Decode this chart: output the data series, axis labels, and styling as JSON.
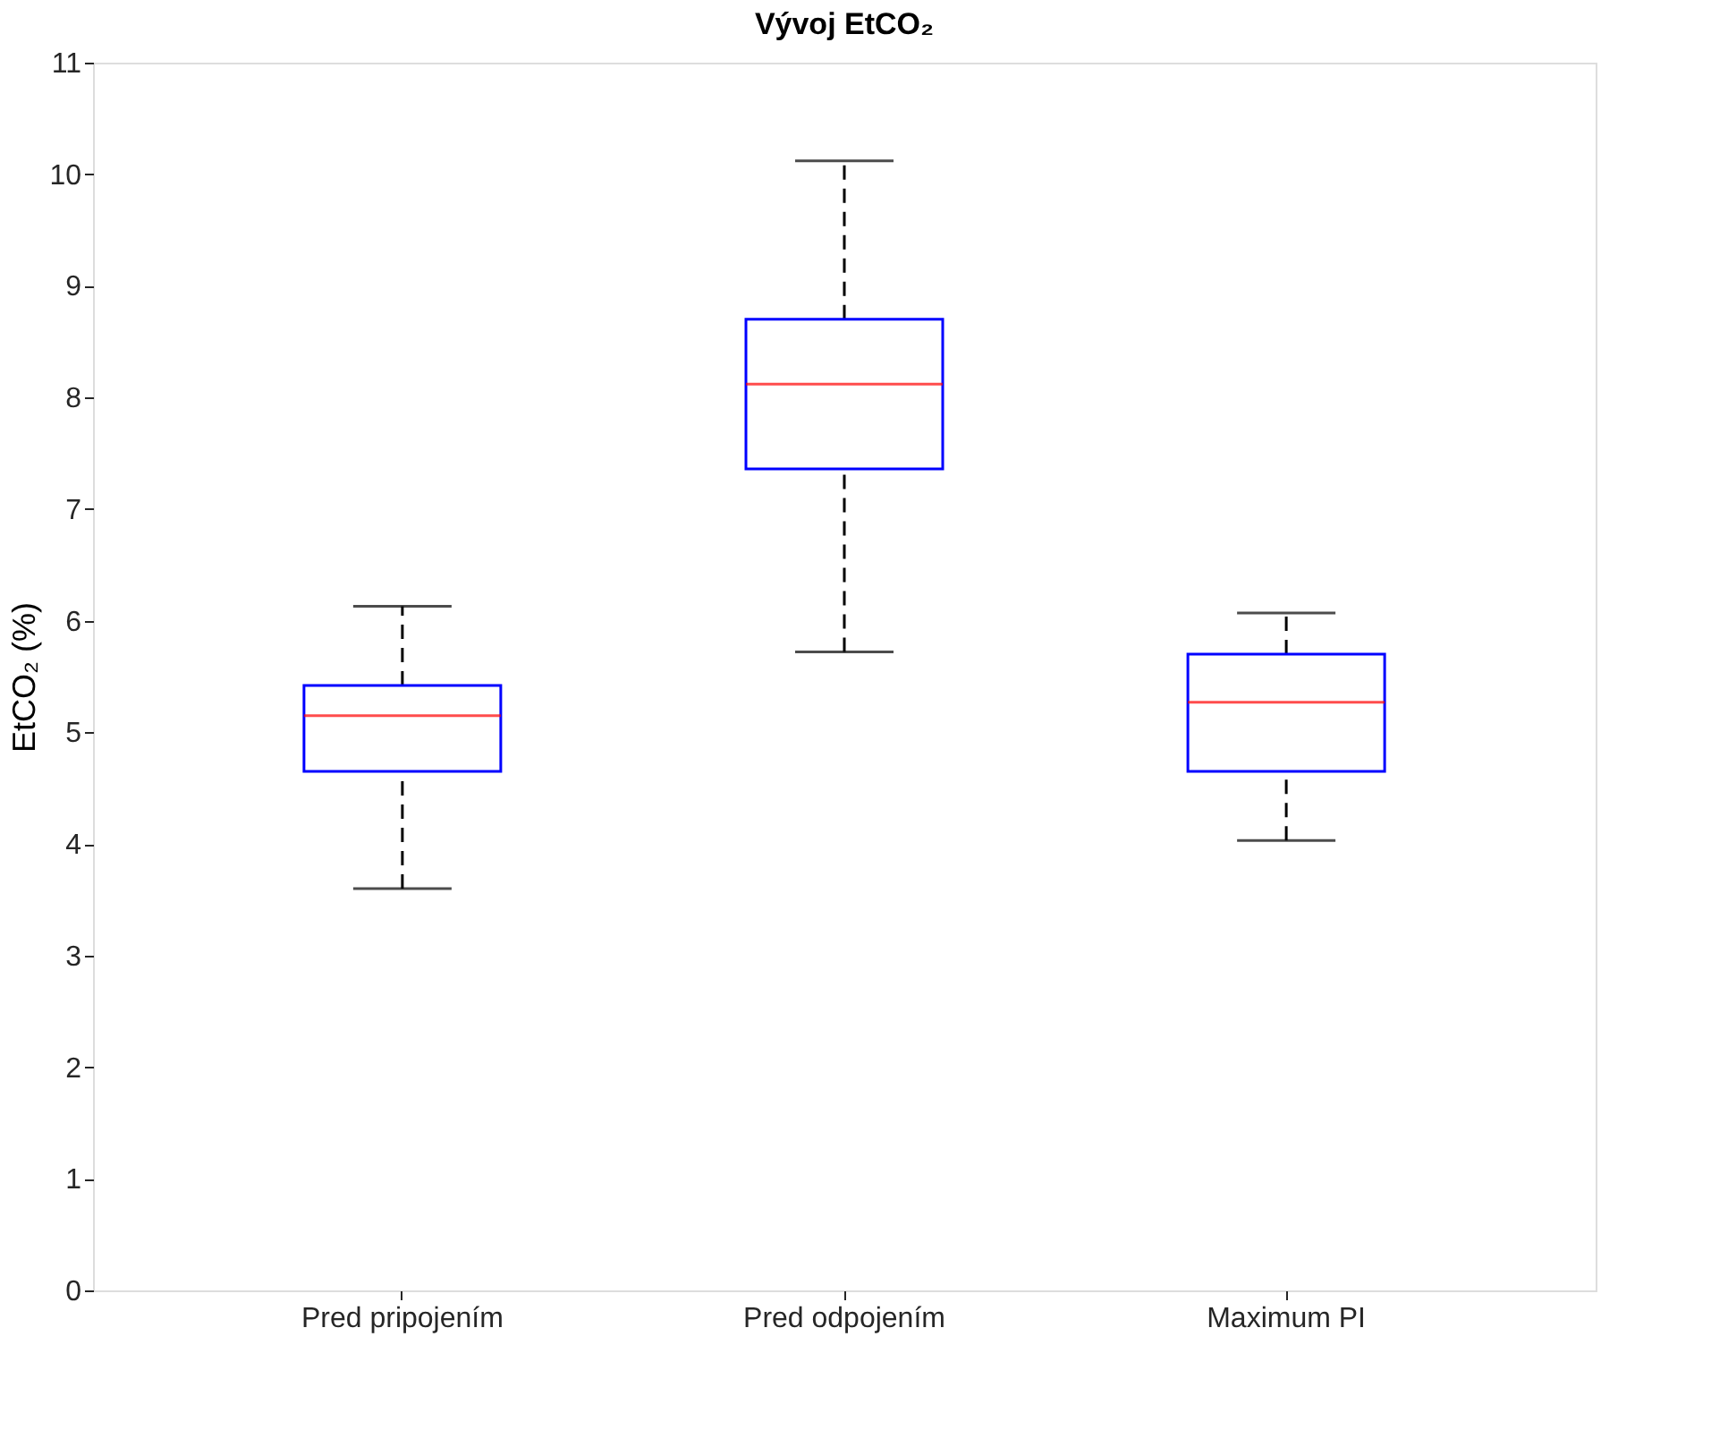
{
  "chart_data": {
    "type": "box",
    "title": "Vývoj EtCO₂",
    "ylabel": "EtCO₂ (%)",
    "categories": [
      "Pred pripojením",
      "Pred odpojením",
      "Maximum PI"
    ],
    "series": [
      {
        "color": "#0000ff",
        "boxes": [
          {
            "low": 3.6,
            "q1": 4.65,
            "median": 5.15,
            "q3": 5.42,
            "high": 6.13
          },
          {
            "low": 5.72,
            "q1": 7.36,
            "median": 8.12,
            "q3": 8.7,
            "high": 10.12
          },
          {
            "low": 4.03,
            "q1": 4.65,
            "median": 5.27,
            "q3": 5.7,
            "high": 6.07
          }
        ]
      }
    ],
    "ylim": [
      0,
      11
    ],
    "yticks": [
      0,
      1,
      2,
      3,
      4,
      5,
      6,
      7,
      8,
      9,
      10,
      11
    ],
    "grid": false,
    "line_style": "dashed"
  }
}
